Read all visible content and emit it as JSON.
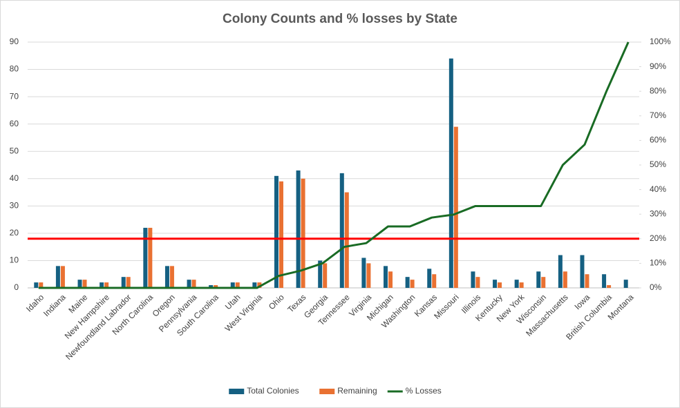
{
  "chart_data": {
    "type": "bar-line",
    "title": "Colony Counts and % losses by State",
    "categories": [
      "Idaho",
      "Indiana",
      "Maine",
      "New Hampshire",
      "Newfoundland Labrador",
      "North Carolina",
      "Oregon",
      "Pennsylvania",
      "South Carolina",
      "Utah",
      "West Virginia",
      "Ohio",
      "Texas",
      "Georgia",
      "Tennessee",
      "Virginia",
      "Michigan",
      "Washington",
      "Kansas",
      "Missouri",
      "Illinois",
      "Kentucky",
      "New York",
      "Wisconsin",
      "Massachusetts",
      "Iowa",
      "British Columbia",
      "Montana"
    ],
    "series": [
      {
        "name": "Total Colonies",
        "type": "bar",
        "color": "#156082",
        "values": [
          2,
          8,
          3,
          2,
          4,
          22,
          8,
          3,
          1,
          2,
          2,
          41,
          43,
          10,
          42,
          11,
          8,
          4,
          7,
          84,
          6,
          3,
          3,
          6,
          12,
          12,
          5,
          3
        ]
      },
      {
        "name": "Remaining",
        "type": "bar",
        "color": "#e97132",
        "values": [
          2,
          8,
          3,
          2,
          4,
          22,
          8,
          3,
          1,
          2,
          2,
          39,
          40,
          9,
          35,
          9,
          6,
          3,
          5,
          59,
          4,
          2,
          2,
          4,
          6,
          5,
          1,
          0
        ]
      },
      {
        "name": "% Losses",
        "type": "line",
        "axis": "y2",
        "color": "#196b24",
        "values": [
          0,
          0,
          0,
          0,
          0,
          0,
          0,
          0,
          0,
          0,
          0,
          4.9,
          7,
          10,
          16.7,
          18.2,
          25,
          25,
          28.6,
          29.8,
          33.3,
          33.3,
          33.3,
          33.3,
          50,
          58.3,
          80,
          100
        ]
      }
    ],
    "reference_line": {
      "value": 20,
      "axis": "y2",
      "color": "#ff0000"
    },
    "ylim": [
      0,
      90
    ],
    "yticks": [
      0,
      10,
      20,
      30,
      40,
      50,
      60,
      70,
      80,
      90
    ],
    "y2lim": [
      0,
      100
    ],
    "y2ticks": [
      {
        "value": 0,
        "label": "0%"
      },
      {
        "value": 10,
        "label": "10%"
      },
      {
        "value": 20,
        "label": "20%"
      },
      {
        "value": 30,
        "label": "30%"
      },
      {
        "value": 40,
        "label": "40%"
      },
      {
        "value": 50,
        "label": "50%"
      },
      {
        "value": 60,
        "label": "60%"
      },
      {
        "value": 70,
        "label": "70%"
      },
      {
        "value": 80,
        "label": "80%"
      },
      {
        "value": 90,
        "label": "90%"
      },
      {
        "value": 100,
        "label": "100%"
      }
    ],
    "legend": "bottom"
  }
}
